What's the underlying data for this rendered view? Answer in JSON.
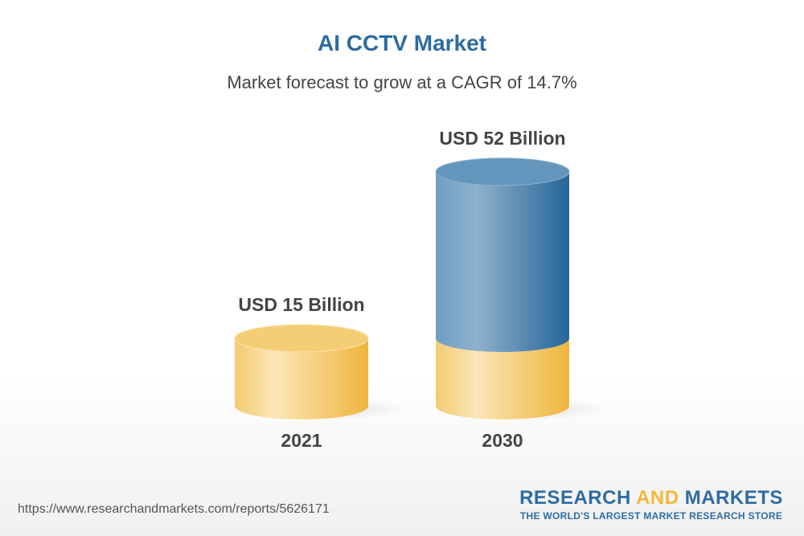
{
  "title": "AI CCTV Market",
  "subtitle": "Market forecast to grow at a CAGR of 14.7%",
  "chart_data": {
    "type": "bar",
    "style": "3d-cylinder",
    "categories": [
      "2021",
      "2030"
    ],
    "values": [
      15,
      52
    ],
    "data_labels": [
      "USD 15 Billion",
      "USD 52 Billion"
    ],
    "unit": "USD Billion",
    "colors": {
      "base": "#f2c45e",
      "growth": "#2d6ca2"
    }
  },
  "footer": {
    "url": "https://www.researchandmarkets.com/reports/5626171",
    "logo_part1": "RESEARCH ",
    "logo_part2": "AND",
    "logo_part3": " MARKETS",
    "tagline": "THE WORLD'S LARGEST MARKET RESEARCH STORE"
  }
}
